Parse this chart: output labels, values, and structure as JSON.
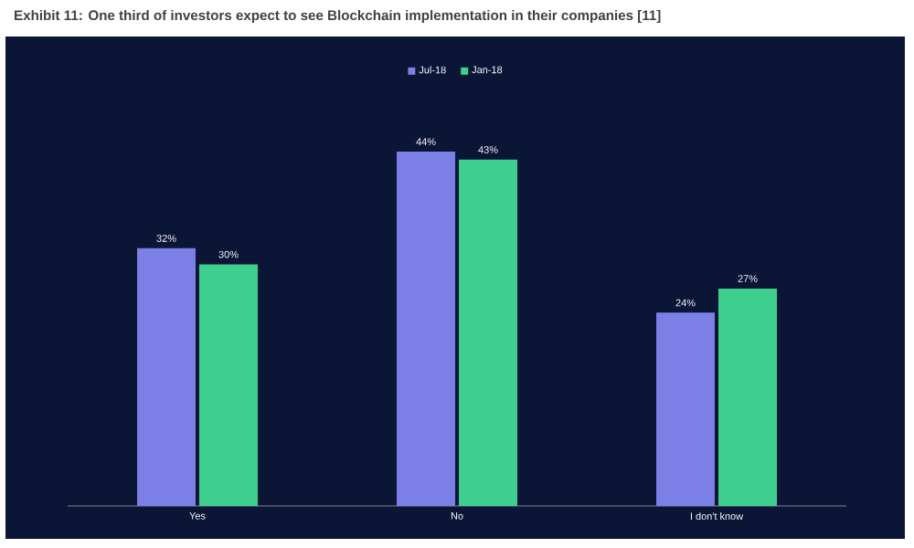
{
  "chart_data": {
    "type": "bar",
    "title": "Exhibit 11: One third of investors expect to see Blockchain implementation in their companies [11]",
    "categories": [
      "Yes",
      "No",
      "I don't know"
    ],
    "series": [
      {
        "name": "Jul-18",
        "color": "#7b7fe6",
        "values": [
          32,
          44,
          24
        ],
        "value_labels": [
          "32%",
          "44%",
          "24%"
        ]
      },
      {
        "name": "Jan-18",
        "color": "#3ecf8e",
        "values": [
          30,
          43,
          27
        ],
        "value_labels": [
          "30%",
          "43%",
          "27%"
        ]
      }
    ],
    "legend": "top",
    "grid": false
  }
}
